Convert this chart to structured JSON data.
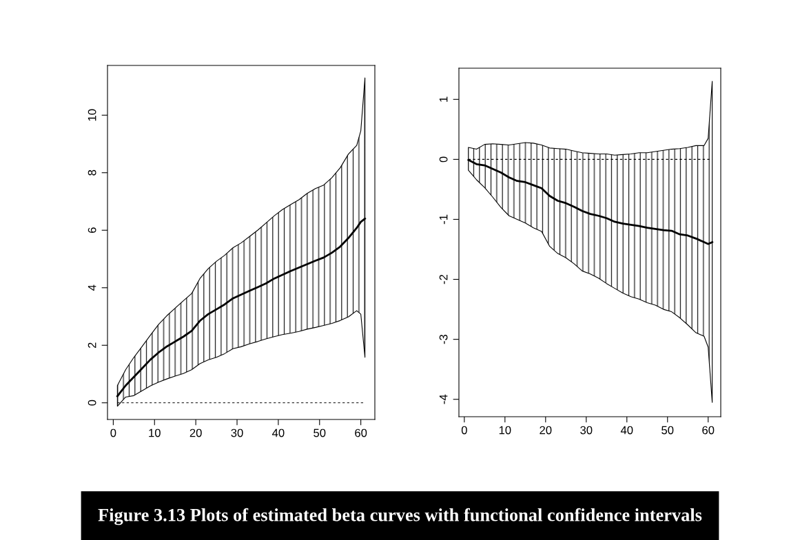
{
  "chart_data": [
    {
      "type": "line",
      "annotations": [
        "Figure 3.13 Plots of estimated beta curves with functional confidence intervals"
      ],
      "xlim": [
        -1.4,
        63.4
      ],
      "xticks": [
        0,
        10,
        20,
        30,
        40,
        50,
        60
      ],
      "ylim": [
        -0.58,
        11.73
      ],
      "yticks": [
        0,
        2,
        4,
        6,
        8,
        10
      ],
      "ref_lines": [
        {
          "axis": "y",
          "value": 0,
          "color": "#000000",
          "line_style": "dashed"
        }
      ],
      "series": [
        {
          "color": "#000000",
          "x": [
            1,
            3,
            5,
            7,
            9,
            11,
            13,
            15,
            17,
            19,
            21,
            23,
            25,
            27,
            29,
            31,
            33,
            35,
            37,
            39,
            41,
            43,
            45,
            47,
            49,
            51,
            53,
            55,
            57,
            59,
            60,
            61
          ],
          "values": [
            0.23,
            0.6,
            0.9,
            1.2,
            1.5,
            1.75,
            1.96,
            2.13,
            2.3,
            2.5,
            2.85,
            3.08,
            3.25,
            3.42,
            3.63,
            3.76,
            3.89,
            4.02,
            4.15,
            4.32,
            4.45,
            4.58,
            4.7,
            4.82,
            4.94,
            5.05,
            5.22,
            5.43,
            5.73,
            6.08,
            6.29,
            6.4
          ],
          "upper": [
            0.6,
            1.15,
            1.58,
            1.96,
            2.35,
            2.73,
            3.03,
            3.29,
            3.55,
            3.8,
            4.32,
            4.66,
            4.92,
            5.13,
            5.39,
            5.56,
            5.78,
            6.0,
            6.25,
            6.5,
            6.72,
            6.89,
            7.06,
            7.28,
            7.45,
            7.57,
            7.83,
            8.17,
            8.65,
            8.95,
            9.46,
            11.3
          ],
          "lower": [
            -0.12,
            0.2,
            0.25,
            0.42,
            0.59,
            0.72,
            0.83,
            0.93,
            1.02,
            1.15,
            1.36,
            1.49,
            1.58,
            1.71,
            1.88,
            1.95,
            2.05,
            2.13,
            2.22,
            2.3,
            2.37,
            2.42,
            2.48,
            2.56,
            2.62,
            2.69,
            2.76,
            2.86,
            2.99,
            3.2,
            3.08,
            1.58
          ]
        }
      ]
    },
    {
      "type": "line",
      "xlim": [
        -1.33,
        63.1
      ],
      "xticks": [
        0,
        10,
        20,
        30,
        40,
        50,
        60
      ],
      "ylim": [
        -4.29,
        1.52
      ],
      "yticks": [
        -4,
        -3,
        -2,
        -1,
        0,
        1
      ],
      "ref_lines": [
        {
          "axis": "y",
          "value": 0,
          "color": "#000000",
          "line_style": "dashed"
        }
      ],
      "series": [
        {
          "color": "#000000",
          "x": [
            1,
            3,
            5,
            7,
            9,
            11,
            13,
            15,
            17,
            19,
            21,
            23,
            25,
            27,
            29,
            31,
            33,
            35,
            37,
            39,
            41,
            43,
            45,
            47,
            49,
            51,
            53,
            55,
            57,
            59,
            60,
            61
          ],
          "values": [
            -0.01,
            -0.08,
            -0.1,
            -0.16,
            -0.22,
            -0.3,
            -0.36,
            -0.38,
            -0.43,
            -0.48,
            -0.61,
            -0.69,
            -0.73,
            -0.79,
            -0.86,
            -0.91,
            -0.94,
            -0.98,
            -1.04,
            -1.07,
            -1.09,
            -1.11,
            -1.14,
            -1.16,
            -1.18,
            -1.19,
            -1.25,
            -1.27,
            -1.32,
            -1.38,
            -1.41,
            -1.38
          ],
          "upper": [
            0.2,
            0.17,
            0.25,
            0.26,
            0.25,
            0.24,
            0.26,
            0.28,
            0.27,
            0.24,
            0.19,
            0.18,
            0.17,
            0.14,
            0.11,
            0.1,
            0.09,
            0.09,
            0.07,
            0.08,
            0.09,
            0.11,
            0.11,
            0.13,
            0.15,
            0.17,
            0.18,
            0.2,
            0.23,
            0.23,
            0.35,
            1.3
          ],
          "lower": [
            -0.18,
            -0.34,
            -0.47,
            -0.63,
            -0.8,
            -0.94,
            -1.0,
            -1.06,
            -1.14,
            -1.2,
            -1.45,
            -1.57,
            -1.64,
            -1.74,
            -1.86,
            -1.91,
            -1.98,
            -2.07,
            -2.15,
            -2.23,
            -2.29,
            -2.33,
            -2.39,
            -2.43,
            -2.5,
            -2.54,
            -2.64,
            -2.76,
            -2.89,
            -2.95,
            -3.13,
            -4.05
          ]
        }
      ]
    }
  ]
}
